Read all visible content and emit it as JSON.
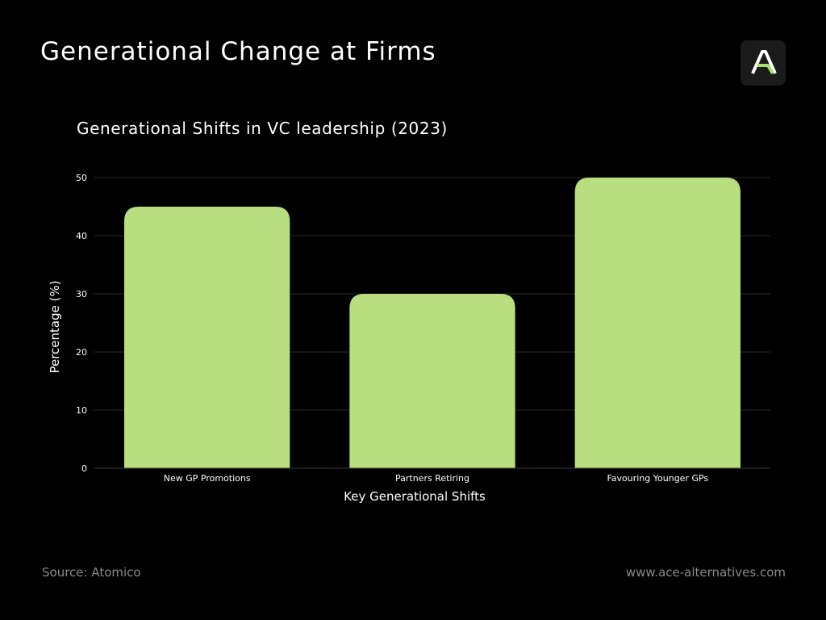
{
  "header": {
    "title": "Generational Change at Firms",
    "logo_icon": "ace-alternatives-logo-icon"
  },
  "chart_data": {
    "type": "bar",
    "title": "Generational Shifts in VC leadership (2023)",
    "categories": [
      "New GP Promotions",
      "Partners Retiring",
      "Favouring Younger GPs"
    ],
    "values": [
      45,
      30,
      50
    ],
    "xlabel": "Key Generational Shifts",
    "ylabel": "Percentage (%)",
    "ylim": [
      0,
      50
    ],
    "yticks": [
      0,
      10,
      20,
      30,
      40,
      50
    ],
    "grid": true,
    "bar_color": "#b8de7f",
    "gridline_color": "#2a2a2a"
  },
  "footer": {
    "source": "Source: Atomico",
    "url": "www.ace-alternatives.com"
  }
}
